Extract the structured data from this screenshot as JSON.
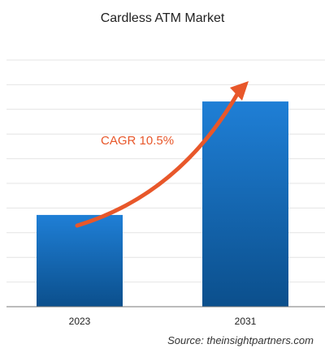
{
  "chart_data": {
    "type": "bar",
    "title": "Cardless ATM Market",
    "categories": [
      "2023",
      "2031"
    ],
    "values": [
      0.372,
      0.832
    ],
    "value_scale": "relative (unlabeled axis), fraction of axis height",
    "ylim": [
      0,
      1
    ],
    "grid": true,
    "bar_color": "#1a6fc2",
    "annotation": {
      "text": "CAGR 10.5%",
      "color": "#e8572a"
    }
  },
  "source": "Source: theinsightpartners.com"
}
